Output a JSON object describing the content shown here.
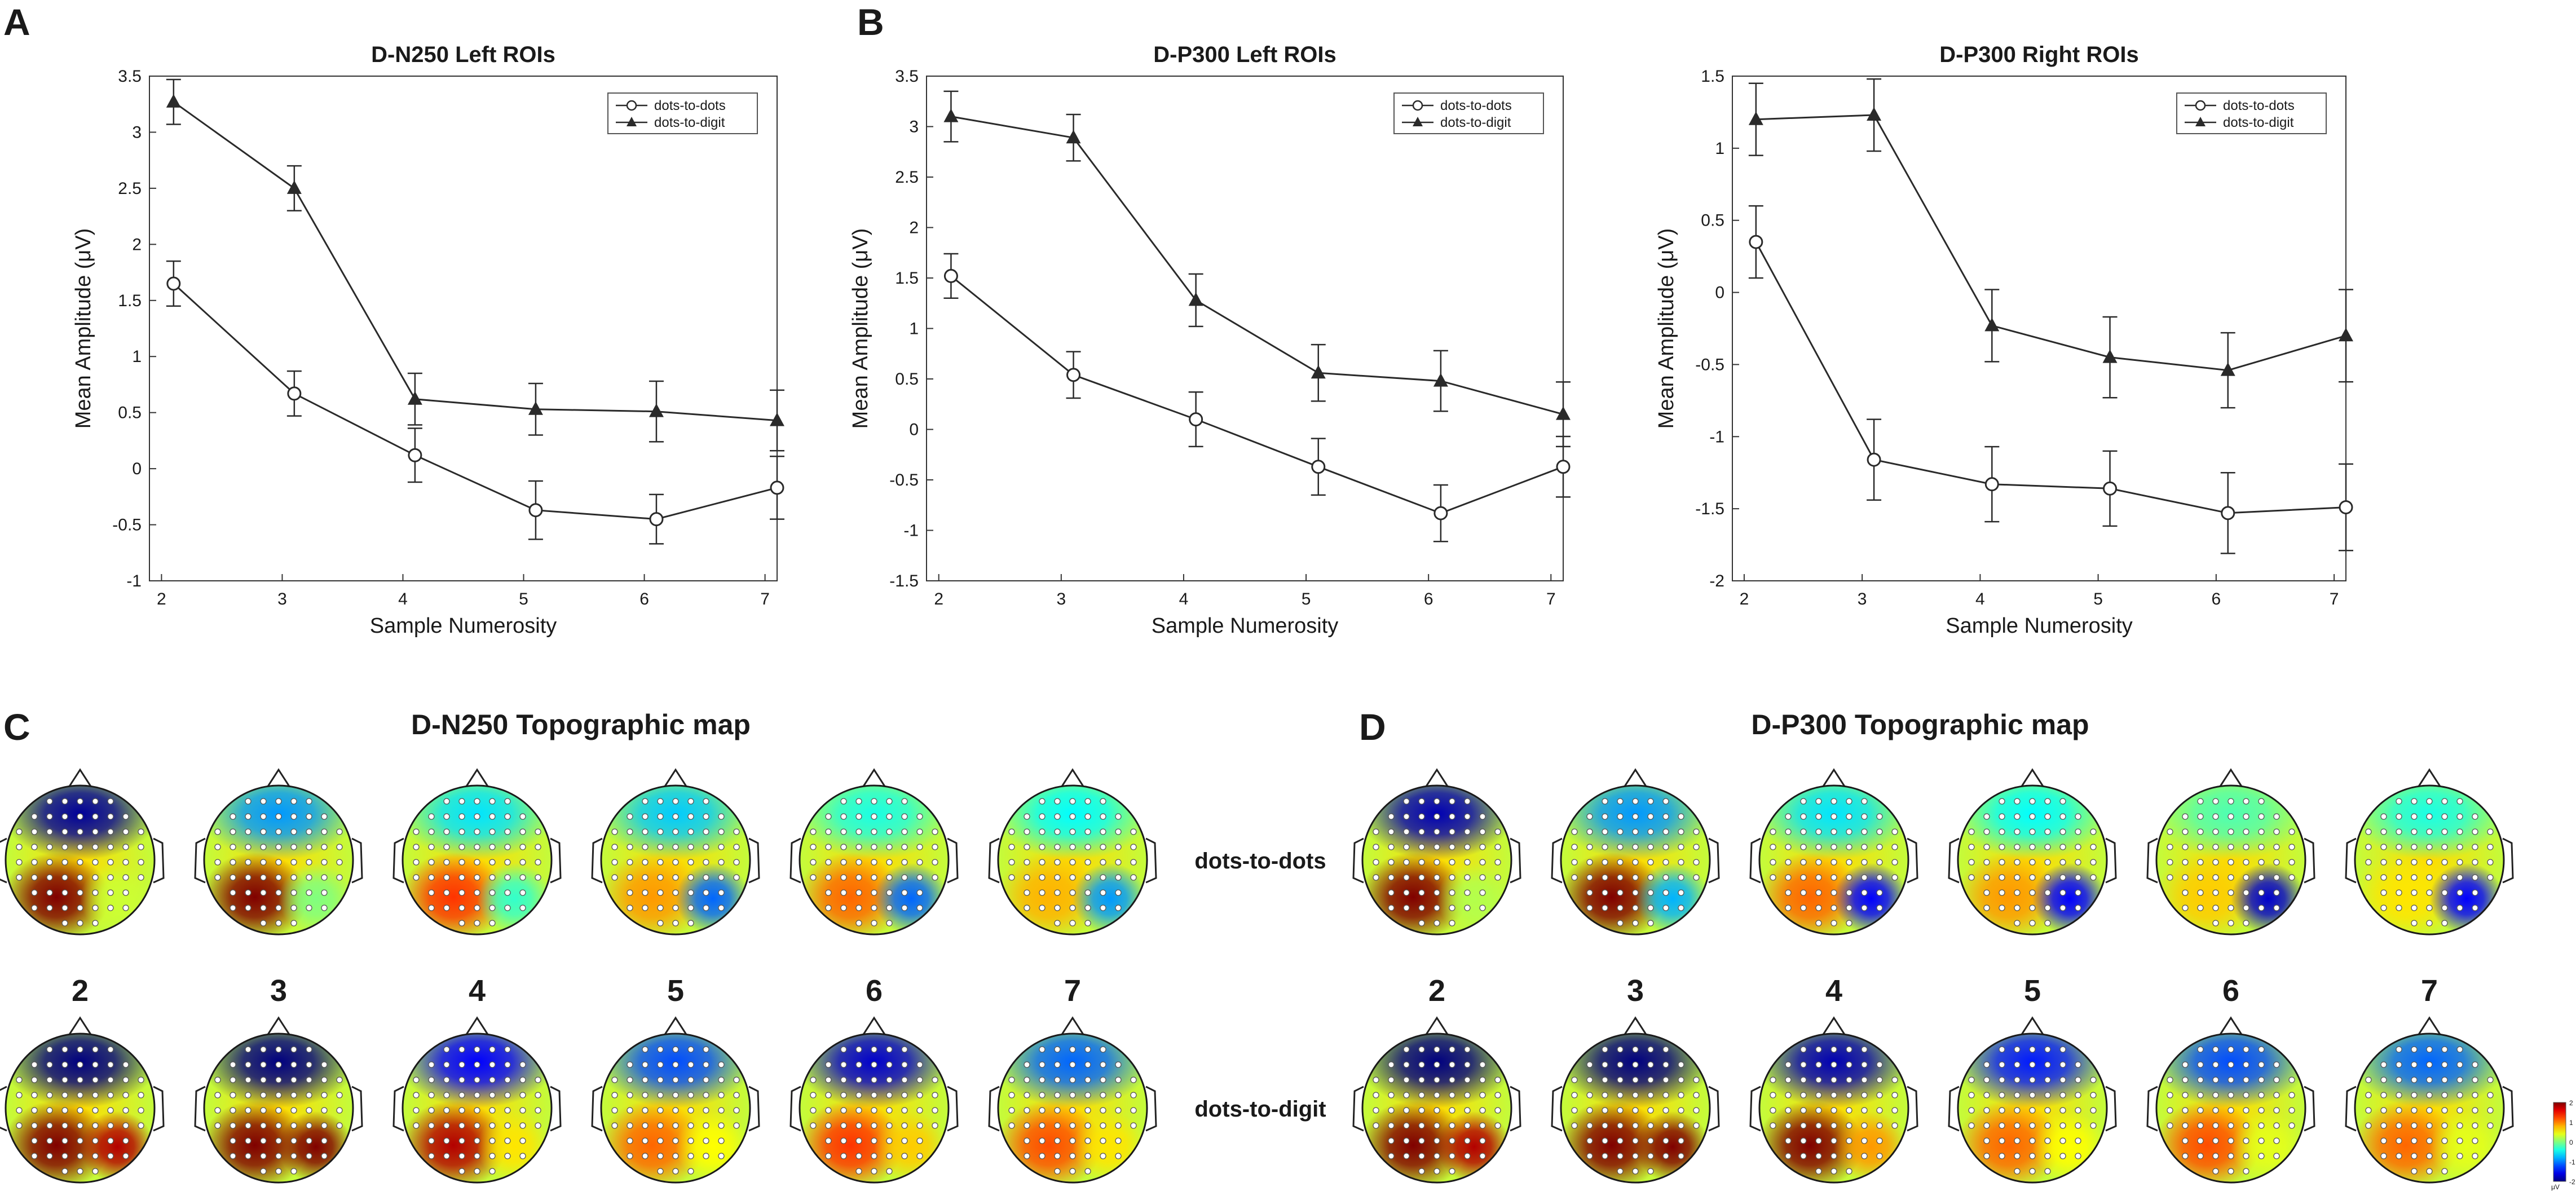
{
  "panel_labels": {
    "A": "A",
    "B": "B",
    "C": "C",
    "D": "D"
  },
  "chart_data": [
    {
      "type": "line",
      "title": "D-N250 Left ROIs",
      "xlabel": "Sample Numerosity",
      "ylabel": "Mean Amplitude (μV)",
      "xlim": [
        1.9,
        7.1
      ],
      "ylim": [
        -1,
        3.5
      ],
      "xticks": [
        "2",
        "3",
        "4",
        "5",
        "6",
        "7"
      ],
      "yticks": [
        "-1",
        "-0.5",
        "0",
        "0.5",
        "1",
        "1.5",
        "2",
        "2.5",
        "3",
        "3.5"
      ],
      "legend_position": "top-right",
      "x": [
        2.1,
        3.1,
        4.1,
        5.1,
        6.1,
        7.1
      ],
      "series": [
        {
          "name": "dots-to-dots",
          "marker": "open-circle",
          "values": [
            1.65,
            0.67,
            0.12,
            -0.37,
            -0.45,
            -0.17
          ],
          "errors": [
            0.2,
            0.2,
            0.24,
            0.26,
            0.22,
            0.28
          ]
        },
        {
          "name": "dots-to-digit",
          "marker": "filled-triangle",
          "values": [
            3.27,
            2.5,
            0.62,
            0.53,
            0.51,
            0.43
          ],
          "errors": [
            0.2,
            0.2,
            0.23,
            0.23,
            0.27,
            0.27
          ]
        }
      ]
    },
    {
      "type": "line",
      "title": "D-P300 Left ROIs",
      "xlabel": "Sample Numerosity",
      "ylabel": "Mean Amplitude (μV)",
      "xlim": [
        1.9,
        7.1
      ],
      "ylim": [
        -1.5,
        3.5
      ],
      "xticks": [
        "2",
        "3",
        "4",
        "5",
        "6",
        "7"
      ],
      "yticks": [
        "-1.5",
        "-1",
        "-0.5",
        "0",
        "0.5",
        "1",
        "1.5",
        "2",
        "2.5",
        "3",
        "3.5"
      ],
      "legend_position": "top-right",
      "x": [
        2.1,
        3.1,
        4.1,
        5.1,
        6.1,
        7.1
      ],
      "series": [
        {
          "name": "dots-to-dots",
          "marker": "open-circle",
          "values": [
            1.52,
            0.54,
            0.1,
            -0.37,
            -0.83,
            -0.37
          ],
          "errors": [
            0.22,
            0.23,
            0.27,
            0.28,
            0.28,
            0.3
          ]
        },
        {
          "name": "dots-to-digit",
          "marker": "filled-triangle",
          "values": [
            3.1,
            2.89,
            1.28,
            0.56,
            0.48,
            0.15
          ],
          "errors": [
            0.25,
            0.23,
            0.26,
            0.28,
            0.3,
            0.32
          ]
        }
      ]
    },
    {
      "type": "line",
      "title": "D-P300 Right ROIs",
      "xlabel": "Sample Numerosity",
      "ylabel": "Mean Amplitude (μV)",
      "xlim": [
        1.9,
        7.1
      ],
      "ylim": [
        -2,
        1.5
      ],
      "xticks": [
        "2",
        "3",
        "4",
        "5",
        "6",
        "7"
      ],
      "yticks": [
        "-2",
        "-1.5",
        "-1",
        "-0.5",
        "0",
        "0.5",
        "1",
        "1.5"
      ],
      "legend_position": "top-right",
      "x": [
        2.1,
        3.1,
        4.1,
        5.1,
        6.1,
        7.1
      ],
      "series": [
        {
          "name": "dots-to-dots",
          "marker": "open-circle",
          "values": [
            0.35,
            -1.16,
            -1.33,
            -1.36,
            -1.53,
            -1.49
          ],
          "errors": [
            0.25,
            0.28,
            0.26,
            0.26,
            0.28,
            0.3
          ]
        },
        {
          "name": "dots-to-digit",
          "marker": "filled-triangle",
          "values": [
            1.2,
            1.23,
            -0.23,
            -0.45,
            -0.54,
            -0.3
          ],
          "errors": [
            0.25,
            0.25,
            0.25,
            0.28,
            0.26,
            0.32
          ]
        }
      ]
    }
  ],
  "topo": {
    "left_title": "D-N250 Topographic map",
    "right_title": "D-P300 Topographic map",
    "numerosities": [
      "2",
      "3",
      "4",
      "5",
      "6",
      "7"
    ],
    "row_labels": [
      "dots-to-dots",
      "dots-to-digit"
    ],
    "colorbar": {
      "ticks": [
        "2",
        "1",
        "0",
        "-1",
        "-2"
      ],
      "unit": "μV"
    },
    "panels": [
      {
        "name": "D-N250",
        "rows": [
          [
            {
              "posterior_left": 1.0,
              "posterior_right": 0.15,
              "frontal": -0.95
            },
            {
              "posterior_left": 1.0,
              "posterior_right": 0.0,
              "frontal": -0.45
            },
            {
              "posterior_left": 0.65,
              "posterior_right": -0.15,
              "frontal": -0.3
            },
            {
              "posterior_left": 0.45,
              "posterior_right": -0.55,
              "frontal": -0.35
            },
            {
              "posterior_left": 0.55,
              "posterior_right": -0.55,
              "frontal": -0.2
            },
            {
              "posterior_left": 0.4,
              "posterior_right": -0.45,
              "frontal": -0.25
            }
          ],
          [
            {
              "posterior_left": 1.0,
              "posterior_right": 0.9,
              "frontal": -1.0
            },
            {
              "posterior_left": 1.0,
              "posterior_right": 1.0,
              "frontal": -1.0
            },
            {
              "posterior_left": 0.9,
              "posterior_right": 0.3,
              "frontal": -0.75
            },
            {
              "posterior_left": 0.55,
              "posterior_right": 0.25,
              "frontal": -0.6
            },
            {
              "posterior_left": 0.65,
              "posterior_right": 0.35,
              "frontal": -0.85
            },
            {
              "posterior_left": 0.6,
              "posterior_right": 0.3,
              "frontal": -0.55
            }
          ]
        ]
      },
      {
        "name": "D-P300",
        "rows": [
          [
            {
              "posterior_left": 1.0,
              "posterior_right": 0.1,
              "frontal": -0.9
            },
            {
              "posterior_left": 1.0,
              "posterior_right": -0.4,
              "frontal": -0.45
            },
            {
              "posterior_left": 0.55,
              "posterior_right": -0.75,
              "frontal": -0.3
            },
            {
              "posterior_left": 0.45,
              "posterior_right": -0.75,
              "frontal": -0.25
            },
            {
              "posterior_left": 0.35,
              "posterior_right": -0.85,
              "frontal": -0.1
            },
            {
              "posterior_left": 0.3,
              "posterior_right": -0.75,
              "frontal": -0.2
            }
          ],
          [
            {
              "posterior_left": 1.0,
              "posterior_right": 0.9,
              "frontal": -1.0
            },
            {
              "posterior_left": 1.0,
              "posterior_right": 1.0,
              "frontal": -1.0
            },
            {
              "posterior_left": 1.0,
              "posterior_right": 0.45,
              "frontal": -0.9
            },
            {
              "posterior_left": 0.55,
              "posterior_right": 0.25,
              "frontal": -0.7
            },
            {
              "posterior_left": 0.6,
              "posterior_right": 0.2,
              "frontal": -0.6
            },
            {
              "posterior_left": 0.55,
              "posterior_right": 0.2,
              "frontal": -0.55
            }
          ]
        ]
      }
    ]
  }
}
